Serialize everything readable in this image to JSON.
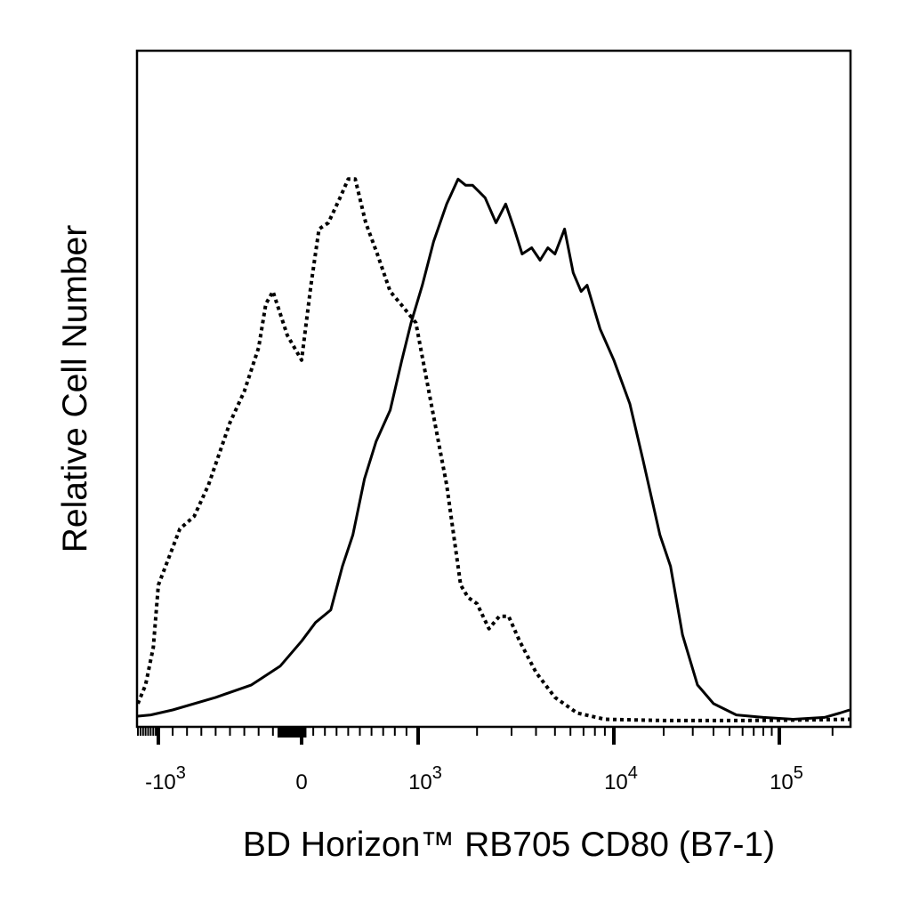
{
  "chart_data": {
    "type": "line",
    "subtype": "flow-cytometry-histogram",
    "xlabel": "BD Horizon™ RB705  CD80  (B7-1)",
    "ylabel": "Relative Cell Number",
    "x_scale": "biexponential",
    "x_ticks": [
      {
        "value": -1000,
        "base": "-10",
        "exp": "3"
      },
      {
        "value": 0,
        "base": "0",
        "exp": ""
      },
      {
        "value": 1000,
        "base": "10",
        "exp": "3"
      },
      {
        "value": 10000,
        "base": "10",
        "exp": "4"
      },
      {
        "value": 100000,
        "base": "10",
        "exp": "5"
      }
    ],
    "xlim": [
      -1800,
      250000
    ],
    "ylim": [
      0,
      100
    ],
    "grid": false,
    "legend": "none",
    "series": [
      {
        "style": "dotted",
        "color": "#000000",
        "points": [
          [
            -1800,
            3
          ],
          [
            -1500,
            6
          ],
          [
            -1200,
            12
          ],
          [
            -1000,
            22
          ],
          [
            -850,
            31
          ],
          [
            -750,
            33
          ],
          [
            -650,
            38
          ],
          [
            -500,
            48
          ],
          [
            -400,
            53
          ],
          [
            -300,
            60
          ],
          [
            -250,
            67
          ],
          [
            -200,
            69
          ],
          [
            -100,
            62
          ],
          [
            0,
            58
          ],
          [
            80,
            70
          ],
          [
            150,
            79
          ],
          [
            230,
            80
          ],
          [
            330,
            84
          ],
          [
            400,
            87
          ],
          [
            460,
            87
          ],
          [
            550,
            80
          ],
          [
            650,
            75
          ],
          [
            760,
            69
          ],
          [
            850,
            67
          ],
          [
            980,
            64
          ],
          [
            1150,
            52
          ],
          [
            1400,
            38
          ],
          [
            1650,
            22
          ],
          [
            1800,
            20
          ],
          [
            2000,
            19
          ],
          [
            2300,
            15
          ],
          [
            2600,
            17
          ],
          [
            2900,
            17
          ],
          [
            3300,
            13
          ],
          [
            4000,
            8
          ],
          [
            5000,
            4
          ],
          [
            6500,
            1.5
          ],
          [
            9000,
            0.5
          ],
          [
            20000,
            0.3
          ],
          [
            60000,
            0.3
          ],
          [
            150000,
            0.4
          ],
          [
            250000,
            0.5
          ]
        ]
      },
      {
        "style": "solid",
        "color": "#000000",
        "points": [
          [
            -1800,
            1
          ],
          [
            -1300,
            1.2
          ],
          [
            -900,
            2
          ],
          [
            -600,
            4
          ],
          [
            -350,
            6
          ],
          [
            -150,
            9
          ],
          [
            0,
            13
          ],
          [
            120,
            16
          ],
          [
            250,
            18
          ],
          [
            350,
            25
          ],
          [
            440,
            30
          ],
          [
            540,
            39
          ],
          [
            640,
            45
          ],
          [
            760,
            50
          ],
          [
            860,
            58
          ],
          [
            940,
            64
          ],
          [
            1050,
            70
          ],
          [
            1200,
            77
          ],
          [
            1400,
            83
          ],
          [
            1600,
            87
          ],
          [
            1750,
            86
          ],
          [
            1900,
            86
          ],
          [
            2200,
            84
          ],
          [
            2500,
            80
          ],
          [
            2800,
            83
          ],
          [
            3100,
            79
          ],
          [
            3400,
            75
          ],
          [
            3800,
            76
          ],
          [
            4200,
            74
          ],
          [
            4600,
            76
          ],
          [
            5000,
            75
          ],
          [
            5600,
            79
          ],
          [
            6200,
            72
          ],
          [
            6800,
            69
          ],
          [
            7300,
            70
          ],
          [
            8500,
            63
          ],
          [
            10000,
            58
          ],
          [
            12500,
            51
          ],
          [
            15000,
            42
          ],
          [
            19000,
            30
          ],
          [
            22000,
            25
          ],
          [
            26000,
            14
          ],
          [
            32000,
            6
          ],
          [
            40000,
            3
          ],
          [
            55000,
            1.2
          ],
          [
            80000,
            0.8
          ],
          [
            120000,
            0.5
          ],
          [
            180000,
            0.8
          ],
          [
            220000,
            1.5
          ],
          [
            250000,
            2
          ]
        ]
      }
    ]
  }
}
